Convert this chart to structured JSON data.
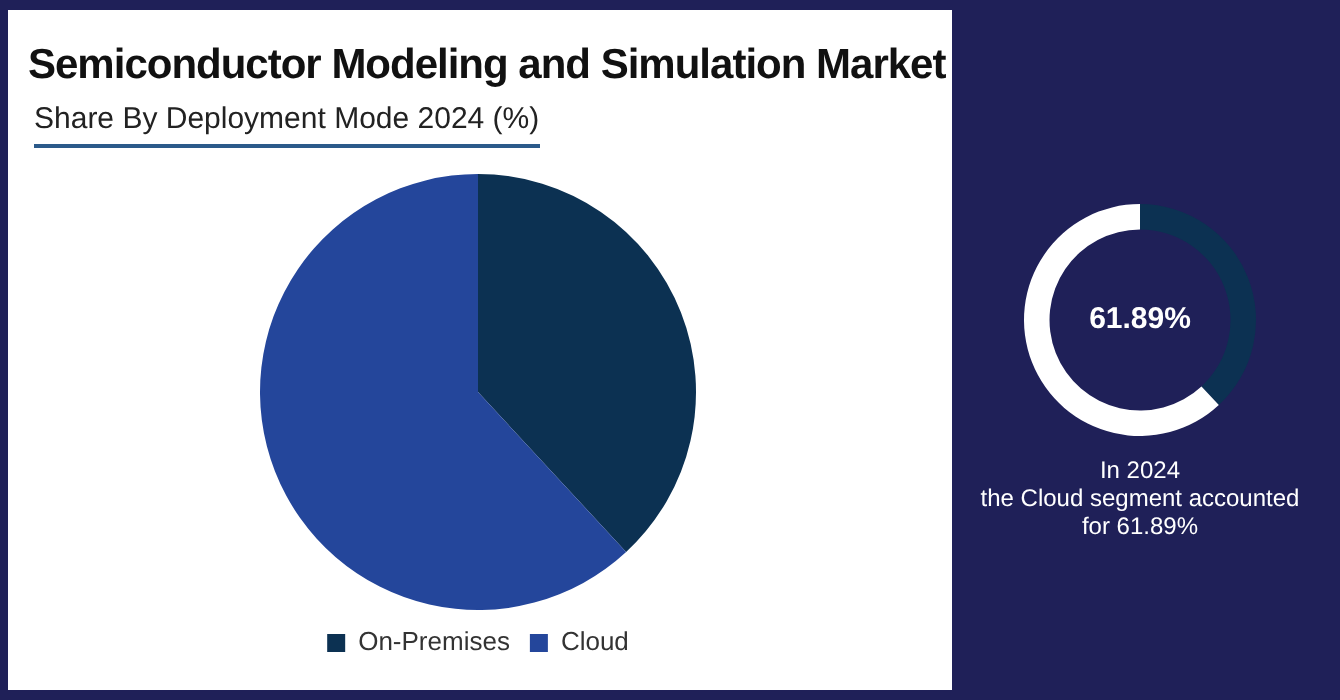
{
  "chart_data": [
    {
      "type": "pie",
      "title": "Semiconductor Modeling and Simulation Market",
      "subtitle": "Share By Deployment Mode 2024 (%)",
      "categories": [
        "On-Premises",
        "Cloud"
      ],
      "values": [
        38.11,
        61.89
      ],
      "colors": [
        "#0c3152",
        "#24469b"
      ],
      "legend": "bottom"
    },
    {
      "type": "donut",
      "categories": [
        null,
        null
      ],
      "values": [
        38.11,
        61.89
      ],
      "colors": [
        "#0c3152",
        "#ffffff"
      ],
      "value_labels": [
        null,
        "61.89%"
      ],
      "annotations": [
        "In 2024\nthe Cloud segment accounted for 61.89%"
      ]
    }
  ]
}
